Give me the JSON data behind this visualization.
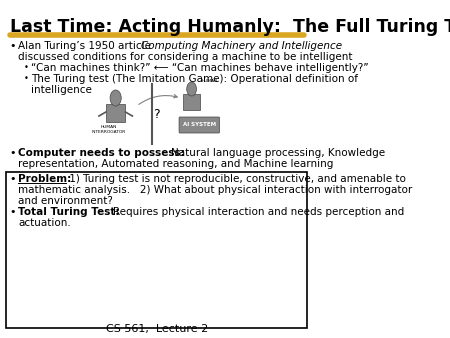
{
  "title": "Last Time: Acting Humanly:  The Full Turing Test",
  "title_fontsize": 12.5,
  "underline_color": "#DAA520",
  "background_color": "#FFFFFF",
  "footer": "CS 561,  Lecture 2",
  "footer_fontsize": 8,
  "bullet1_normal": "Alan Turing’s 1950 article ",
  "bullet1_italic": "Computing Machinery and Intelligence",
  "bullet1_rest": "discussed conditions for considering a machine to be intelligent",
  "sub_bullet1": "“Can machines think?” ⟵ “Can machines behave intelligently?”",
  "sub_bullet2": "The Turing test (The Imitation Game): Operational definition of",
  "sub_bullet2b": "intelligence",
  "bullet2_bold": "Computer needs to possess: ",
  "bullet2_rest": "Natural language processing, Knowledge",
  "bullet2_rest2": "representation, Automated reasoning, and Machine learning",
  "bullet3_label": "Problem:",
  "bullet3_text": " 1) Turing test is not reproducible, constructive, and amenable to",
  "bullet3_text2": "mathematic analysis.   2) What about physical interaction with interrogator",
  "bullet3_text3": "and environment?",
  "bullet4_bold": "Total Turing Test: ",
  "bullet4_rest": "Requires physical interaction and needs perception and",
  "bullet4_rest2": "actuation."
}
